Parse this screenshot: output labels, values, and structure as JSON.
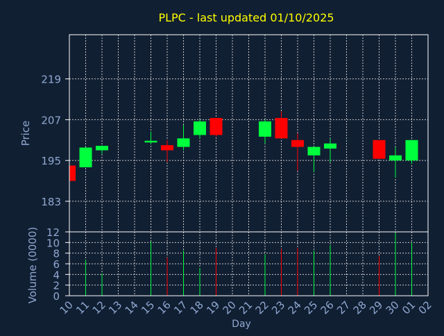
{
  "title": "PLPC - last updated 01/10/2025",
  "colors": {
    "background": "#111f33",
    "title": "#ffff00",
    "axis_text": "#8fa8d0",
    "grid": "#c8c8c8",
    "frame": "#ffffff",
    "up": "#00ff3c",
    "down": "#ff0000"
  },
  "chart_data": [
    {
      "type": "candlestick",
      "title": "PLPC - last updated 01/10/2025",
      "xlabel": "",
      "ylabel": "Price",
      "ylim": [
        174,
        232
      ],
      "yticks": [
        183,
        195,
        207,
        219
      ],
      "grid": true,
      "categories": [
        "10",
        "11",
        "12",
        "13",
        "14",
        "15",
        "16",
        "17",
        "18",
        "19",
        "20",
        "21",
        "22",
        "23",
        "24",
        "25",
        "26",
        "27",
        "28",
        "29",
        "30",
        "01",
        "02"
      ],
      "ohlc": [
        {
          "day": "10",
          "open": 193.5,
          "high": 193.5,
          "low": 189,
          "close": 189
        },
        {
          "day": "11",
          "open": 193,
          "high": 199,
          "low": 193,
          "close": 198.8
        },
        {
          "day": "12",
          "open": 198,
          "high": 199.5,
          "low": 197,
          "close": 199.3
        },
        {
          "day": "15",
          "open": 200.3,
          "high": 203.5,
          "low": 199.8,
          "close": 200.8
        },
        {
          "day": "16",
          "open": 199.5,
          "high": 201,
          "low": 194.5,
          "close": 198
        },
        {
          "day": "17",
          "open": 199,
          "high": 205.5,
          "low": 198,
          "close": 201.5
        },
        {
          "day": "18",
          "open": 202.5,
          "high": 207,
          "low": 201.5,
          "close": 206.5
        },
        {
          "day": "19",
          "open": 207.5,
          "high": 207.5,
          "low": 202,
          "close": 202.5
        },
        {
          "day": "22",
          "open": 202,
          "high": 207,
          "low": 200,
          "close": 206.5
        },
        {
          "day": "23",
          "open": 207.5,
          "high": 209.5,
          "low": 201.5,
          "close": 201.5
        },
        {
          "day": "24",
          "open": 201,
          "high": 203,
          "low": 192,
          "close": 199
        },
        {
          "day": "25",
          "open": 196.5,
          "high": 199,
          "low": 191.5,
          "close": 199
        },
        {
          "day": "26",
          "open": 198.5,
          "high": 201.5,
          "low": 194.5,
          "close": 200
        },
        {
          "day": "29",
          "open": 201,
          "high": 201,
          "low": 195.5,
          "close": 195.5
        },
        {
          "day": "30",
          "open": 195,
          "high": 199,
          "low": 190,
          "close": 196.5
        },
        {
          "day": "01",
          "open": 195,
          "high": 201,
          "low": 194,
          "close": 201
        }
      ]
    },
    {
      "type": "bar",
      "xlabel": "Day",
      "ylabel": "Volume (0000)",
      "ylim": [
        0,
        12
      ],
      "yticks": [
        0,
        2,
        4,
        6,
        8,
        10,
        12
      ],
      "grid": true,
      "categories": [
        "10",
        "11",
        "12",
        "13",
        "14",
        "15",
        "16",
        "17",
        "18",
        "19",
        "20",
        "21",
        "22",
        "23",
        "24",
        "25",
        "26",
        "27",
        "28",
        "29",
        "30",
        "01",
        "02"
      ],
      "values": [
        0,
        6.8,
        4.2,
        0,
        0,
        10.2,
        7.2,
        8.5,
        5.2,
        9,
        0,
        0,
        7.8,
        8.8,
        9,
        8.5,
        9.5,
        0,
        0,
        7.5,
        11.8,
        10,
        0
      ],
      "directions": [
        "down",
        "up",
        "up",
        "",
        "",
        "up",
        "down",
        "up",
        "up",
        "down",
        "",
        "",
        "up",
        "down",
        "down",
        "up",
        "up",
        "",
        "",
        "down",
        "up",
        "up",
        ""
      ]
    }
  ]
}
